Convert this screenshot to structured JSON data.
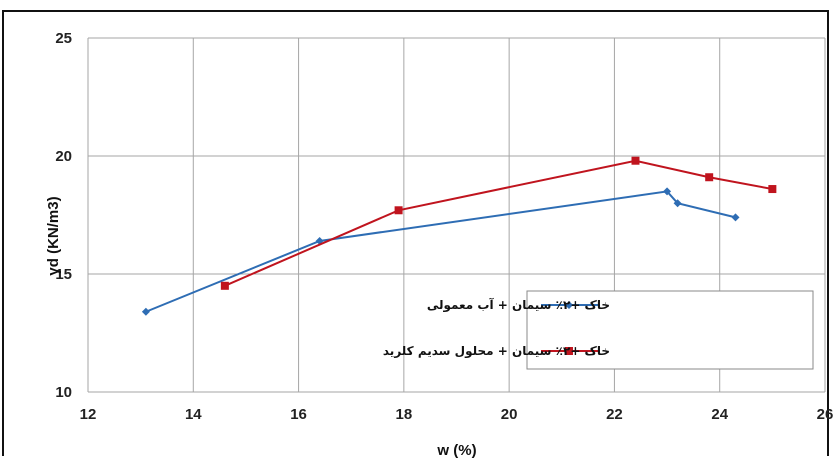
{
  "chart_data": {
    "type": "line",
    "xlabel": "w (%)",
    "ylabel": "γd (KN/m3)",
    "xlim": [
      12,
      26
    ],
    "ylim": [
      10,
      25
    ],
    "x_ticks": [
      "12",
      "14",
      "16",
      "18",
      "20",
      "22",
      "24",
      "26"
    ],
    "y_ticks": [
      "10",
      "15",
      "20",
      "25"
    ],
    "grid": true,
    "legend_position": "right",
    "series": [
      {
        "name": "خاک +۲٪ سیمان + آب معمولی",
        "color": "#2e6db4",
        "marker": "diamond",
        "x": [
          13.1,
          16.4,
          23.0,
          23.2,
          24.3
        ],
        "y": [
          13.4,
          16.4,
          18.5,
          18.0,
          17.4
        ]
      },
      {
        "name": "خاک +۲٪ سیمان + محلول سدیم کلرید",
        "color": "#c0141e",
        "marker": "square",
        "x": [
          14.6,
          17.9,
          22.4,
          23.8,
          25.0
        ],
        "y": [
          14.5,
          17.7,
          19.8,
          19.1,
          18.6
        ]
      }
    ]
  }
}
